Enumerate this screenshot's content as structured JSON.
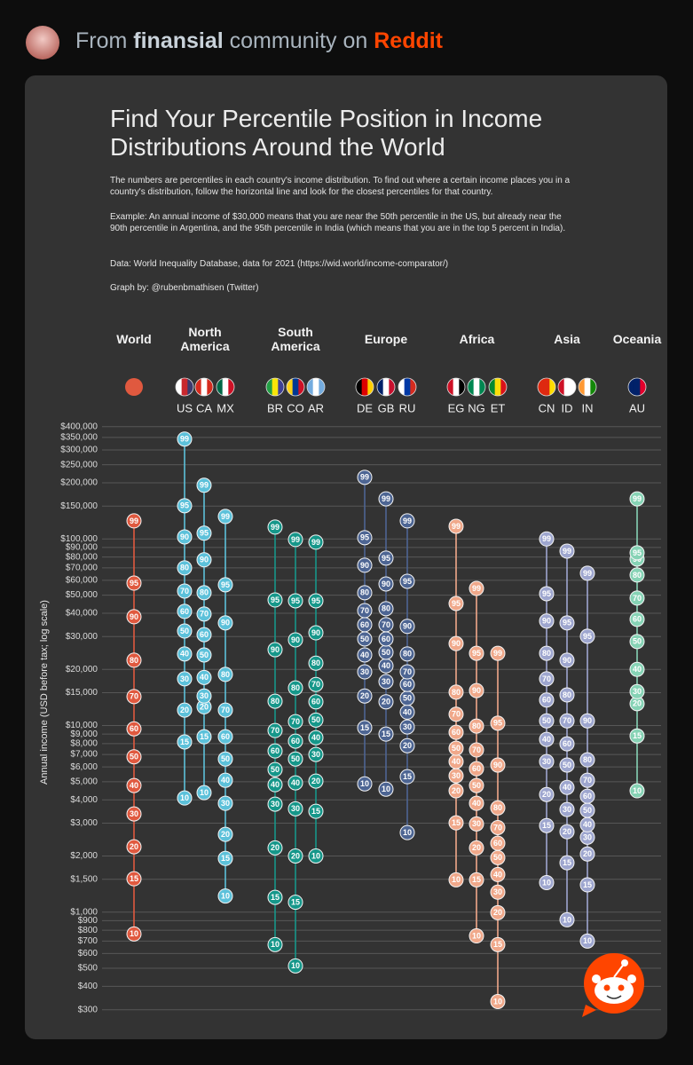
{
  "header": {
    "prefix": "From",
    "community": "finansial",
    "middle": "community on",
    "site": "Reddit"
  },
  "chart_data": {
    "type": "percentile-dot",
    "title": "Find Your Percentile Position in Income Distributions Around the World",
    "description": [
      "The numbers are percentiles in each country's income distribution. To find out where a certain income places you in a country's distribution, follow the horizontal line and look for the closest percentiles for that country.",
      "Example: An annual income of $30,000 means that you are near the 50th percentile in the US, but already near the 90th percentile in Argentina, and the 95th percentile in India (which means that you are in the top 5 percent in India).",
      "Data: World Inequality Database, data for 2021 (https://wid.world/income-comparator/)",
      "Graph by: @rubenbmathisen (Twitter)"
    ],
    "ylabel": "Annual income (USD before tax; log scale)",
    "log_scale": true,
    "grid": true,
    "ylim": [
      280,
      440000
    ],
    "yticks": [
      {
        "value": 400000,
        "label": "$400,000"
      },
      {
        "value": 350000,
        "label": "$350,000"
      },
      {
        "value": 300000,
        "label": "$300,000"
      },
      {
        "value": 250000,
        "label": "$250,000"
      },
      {
        "value": 200000,
        "label": "$200,000"
      },
      {
        "value": 150000,
        "label": "$150,000"
      },
      {
        "value": 100000,
        "label": "$100,000"
      },
      {
        "value": 90000,
        "label": "$90,000"
      },
      {
        "value": 80000,
        "label": "$80,000"
      },
      {
        "value": 70000,
        "label": "$70,000"
      },
      {
        "value": 60000,
        "label": "$60,000"
      },
      {
        "value": 50000,
        "label": "$50,000"
      },
      {
        "value": 40000,
        "label": "$40,000"
      },
      {
        "value": 30000,
        "label": "$30,000"
      },
      {
        "value": 20000,
        "label": "$20,000"
      },
      {
        "value": 15000,
        "label": "$15,000"
      },
      {
        "value": 10000,
        "label": "$10,000"
      },
      {
        "value": 9000,
        "label": "$9,000"
      },
      {
        "value": 8000,
        "label": "$8,000"
      },
      {
        "value": 7000,
        "label": "$7,000"
      },
      {
        "value": 6000,
        "label": "$6,000"
      },
      {
        "value": 5000,
        "label": "$5,000"
      },
      {
        "value": 4000,
        "label": "$4,000"
      },
      {
        "value": 3000,
        "label": "$3,000"
      },
      {
        "value": 2000,
        "label": "$2,000"
      },
      {
        "value": 1500,
        "label": "$1,500"
      },
      {
        "value": 1000,
        "label": "$1,000"
      },
      {
        "value": 900,
        "label": "$900"
      },
      {
        "value": 800,
        "label": "$800"
      },
      {
        "value": 700,
        "label": "$700"
      },
      {
        "value": 600,
        "label": "$600"
      },
      {
        "value": 500,
        "label": "$500"
      },
      {
        "value": 400,
        "label": "$400"
      },
      {
        "value": 300,
        "label": "$300"
      }
    ],
    "percentiles": [
      10,
      15,
      20,
      30,
      40,
      50,
      60,
      70,
      80,
      90,
      95,
      99
    ],
    "groups": [
      {
        "name": "World",
        "color": "#e0593f",
        "series": [
          {
            "values": [
              764,
              1510,
              2240,
              3360,
              4770,
              6800,
              9600,
              14300,
              22400,
              38300,
              58000,
              125000
            ]
          }
        ]
      },
      {
        "name": "North America",
        "color": "#5cc1da",
        "series": [
          {
            "name": "US",
            "values": [
              4090,
              8170,
              12100,
              17800,
              24200,
              32100,
              40900,
              52600,
              70000,
              102600,
              150700,
              343000
            ]
          },
          {
            "name": "CA",
            "values": [
              4370,
              8710,
              12600,
              14400,
              18100,
              23900,
              30700,
              39600,
              51500,
              77300,
              107400,
              194000
            ]
          },
          {
            "name": "MX",
            "values": [
              1220,
              1940,
              2610,
              3830,
              5090,
              6620,
              8710,
              12100,
              18800,
              35500,
              56800,
              132000
            ]
          }
        ]
      },
      {
        "name": "South America",
        "color": "#16978a",
        "series": [
          {
            "name": "BR",
            "values": [
              670,
              1200,
              2210,
              3790,
              4820,
              5810,
              7310,
              9400,
              13500,
              25500,
              47100,
              115800
            ]
          },
          {
            "name": "CO",
            "values": [
              515,
              1130,
              2000,
              3580,
              4930,
              6620,
              8250,
              10500,
              15900,
              28800,
              46600,
              99300
            ]
          },
          {
            "name": "AR",
            "values": [
              2000,
              3470,
              5040,
              7000,
              8610,
              10700,
              13400,
              16600,
              21600,
              31400,
              46600,
              96100
            ]
          }
        ]
      },
      {
        "name": "Europe",
        "color": "#4d6593",
        "series": [
          {
            "name": "DE",
            "values": [
              4870,
              9730,
              14400,
              19400,
              23900,
              29100,
              34700,
              41300,
              51500,
              72300,
              101600,
              214000
            ]
          },
          {
            "name": "GB",
            "values": [
              4560,
              9000,
              13400,
              17200,
              20900,
              24700,
              29100,
              34700,
              42300,
              57400,
              78900,
              164000
            ]
          },
          {
            "name": "RU",
            "values": [
              2670,
              5320,
              7800,
              9830,
              11800,
              14000,
              16600,
              19400,
              24200,
              34000,
              59300,
              125000
            ]
          }
        ]
      },
      {
        "name": "Africa",
        "color": "#f0a88a",
        "series": [
          {
            "name": "EG",
            "values": [
              1490,
              3010,
              4470,
              5380,
              6410,
              7560,
              9200,
              11500,
              15100,
              27500,
              45100,
              117000
            ]
          },
          {
            "name": "NG",
            "values": [
              746,
              1490,
              2210,
              2970,
              3830,
              4770,
              5870,
              7400,
              9940,
              15400,
              24400,
              54300
            ]
          },
          {
            "name": "ET",
            "values": [
              332,
              670,
              994,
              1280,
              1590,
              1960,
              2340,
              2840,
              3620,
              6140,
              10300,
              24400
            ]
          }
        ]
      },
      {
        "name": "Asia",
        "color": "#9ea6cf",
        "series": [
          {
            "name": "CN",
            "values": [
              1440,
              2910,
              4270,
              6410,
              8430,
              10600,
              13700,
              17800,
              24400,
              36300,
              50900,
              100000
            ]
          },
          {
            "name": "ID",
            "values": [
              910,
              1840,
              2700,
              3550,
              4660,
              6140,
              7980,
              10600,
              14600,
              22400,
              35500,
              86100
            ]
          },
          {
            "name": "IN",
            "values": [
              700,
              1400,
              2050,
              2520,
              2940,
              3510,
              4180,
              5090,
              6550,
              10600,
              30100,
              65500
            ]
          }
        ]
      },
      {
        "name": "Oceania",
        "color": "#86d3b5",
        "series": [
          {
            "name": "AU",
            "values": [
              4470,
              8800,
              13100,
              15200,
              20000,
              28200,
              37100,
              48200,
              64100,
              78000,
              84300,
              164000
            ]
          }
        ]
      }
    ]
  }
}
